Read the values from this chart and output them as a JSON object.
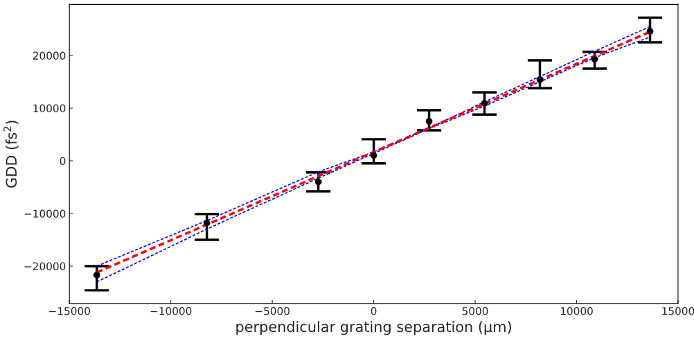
{
  "chart_data": {
    "type": "scatter",
    "xlabel": "perpendicular grating separation (μm)",
    "ylabel": "GDD (fs$^{2}$)",
    "xlim": [
      -15000,
      15000
    ],
    "ylim": [
      -27100,
      29700
    ],
    "xticks": [
      {
        "value": -15000,
        "label": "−15000"
      },
      {
        "value": -10000,
        "label": "−10000"
      },
      {
        "value": -5000,
        "label": "−5000"
      },
      0,
      5000,
      10000,
      15000
    ],
    "yticks": [
      {
        "value": -20000,
        "label": "−20000"
      },
      {
        "value": -10000,
        "label": "−10000"
      },
      0,
      10000,
      20000
    ],
    "grid": false,
    "legend": false,
    "series": [
      {
        "type": "line",
        "color": "#0000ff",
        "line_style": "dashed",
        "marker": "none",
        "x": [
          -13650,
          -8190,
          -2730,
          0,
          2730,
          5460,
          8190,
          10890,
          13620
        ],
        "values": [
          -20000,
          -11300,
          -2100,
          1700,
          6200,
          11200,
          16000,
          20800,
          25500
        ]
      },
      {
        "type": "line",
        "color": "#0000ff",
        "line_style": "dashed",
        "marker": "none",
        "x": [
          -13650,
          -8190,
          -2730,
          0,
          2730,
          5460,
          8190,
          10890,
          13620
        ],
        "values": [
          -23000,
          -12900,
          -3300,
          1400,
          6100,
          10400,
          15000,
          19600,
          23500
        ]
      },
      {
        "type": "line",
        "color": "#ff0000",
        "line_style": "dashed",
        "marker": "none",
        "x": [
          -13650,
          13620
        ],
        "values": [
          -21200,
          24500
        ]
      },
      {
        "color": "#000000",
        "marker": "circle",
        "x": [
          -13650,
          -8225,
          -2730,
          0,
          2730,
          5460,
          8190,
          10890,
          13620
        ],
        "values": [
          -21700,
          -11800,
          -4000,
          1000,
          7500,
          10900,
          15400,
          19300,
          24600
        ],
        "errors": [
          [
            -24600,
            -20000
          ],
          [
            -15000,
            -10100
          ],
          [
            -5800,
            -2200
          ],
          [
            -500,
            4100
          ],
          [
            5800,
            9600
          ],
          [
            8800,
            13000
          ],
          [
            13800,
            19100
          ],
          [
            17500,
            20700
          ],
          [
            22500,
            27200
          ]
        ]
      }
    ]
  }
}
